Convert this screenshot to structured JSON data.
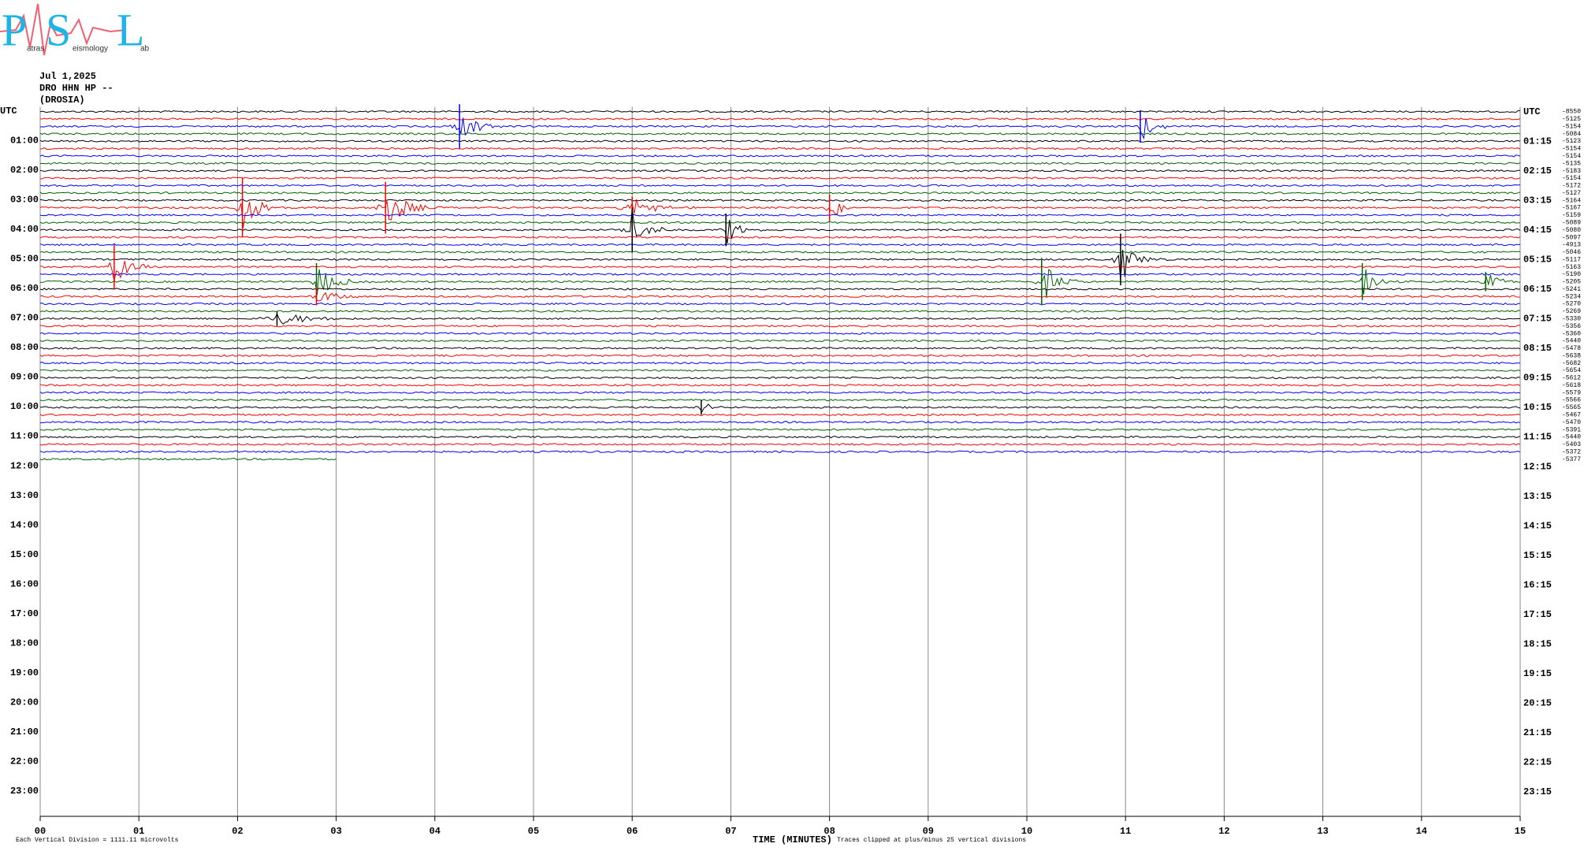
{
  "chart_data": {
    "type": "helicorder",
    "logo": {
      "letters": [
        "P",
        "S",
        "L"
      ],
      "words": [
        "atras",
        "eismology",
        "ab"
      ]
    },
    "header": [
      "Jul 1,2025",
      "DRO HHN HP --",
      "(DROSIA)"
    ],
    "left_labels": [
      "UTC",
      "01:00",
      "02:00",
      "03:00",
      "04:00",
      "05:00",
      "06:00",
      "07:00",
      "08:00",
      "09:00",
      "10:00",
      "11:00",
      "12:00",
      "13:00",
      "14:00",
      "15:00",
      "16:00",
      "17:00",
      "18:00",
      "19:00",
      "20:00",
      "21:00",
      "22:00",
      "23:00"
    ],
    "right_labels": [
      "UTC",
      "01:15",
      "02:15",
      "03:15",
      "04:15",
      "05:15",
      "06:15",
      "07:15",
      "08:15",
      "09:15",
      "10:15",
      "11:15",
      "12:15",
      "13:15",
      "14:15",
      "15:15",
      "16:15",
      "17:15",
      "18:15",
      "19:15",
      "20:15",
      "21:15",
      "22:15",
      "23:15"
    ],
    "trace_colors": [
      "#000000",
      "#ff0000",
      "#0000ff",
      "#006400"
    ],
    "trace_offsets": [
      -8550,
      -5125,
      -5154,
      -5084,
      -5123,
      -5154,
      -5154,
      -5135,
      -5183,
      -5154,
      -5172,
      -5127,
      -5164,
      -5167,
      -5159,
      -5089,
      -5080,
      -5097,
      -4913,
      -5046,
      -5117,
      -5163,
      -5190,
      -5205,
      -5241,
      -5234,
      -5270,
      -5269,
      -5330,
      -5356,
      -5360,
      -5440,
      -5478,
      -5638,
      -5682,
      -5654,
      -5612,
      -5618,
      -5579,
      -5566,
      -5565,
      -5467,
      -5470,
      -5391,
      -5440,
      -5403,
      -5372,
      -5377
    ],
    "last_trace_end_minute": 3,
    "xlim": [
      0,
      15
    ],
    "xticks": [
      {
        "value": 0,
        "label": "00"
      },
      {
        "value": 1,
        "label": "01"
      },
      {
        "value": 2,
        "label": "02"
      },
      {
        "value": 3,
        "label": "03"
      },
      {
        "value": 4,
        "label": "04"
      },
      {
        "value": 5,
        "label": "05"
      },
      {
        "value": 6,
        "label": "06"
      },
      {
        "value": 7,
        "label": "07"
      },
      {
        "value": 8,
        "label": "08"
      },
      {
        "value": 9,
        "label": "09"
      },
      {
        "value": 10,
        "label": "10"
      },
      {
        "value": 11,
        "label": "11"
      },
      {
        "value": 12,
        "label": "12"
      },
      {
        "value": 13,
        "label": "13"
      },
      {
        "value": 14,
        "label": "14"
      },
      {
        "value": 15,
        "label": "15"
      }
    ],
    "events": [
      {
        "row": 2,
        "minute": 4.25,
        "amp": 3,
        "length": 0.5
      },
      {
        "row": 2,
        "minute": 11.15,
        "amp": 2.2,
        "length": 0.5
      },
      {
        "row": 13,
        "minute": 2.05,
        "amp": 4,
        "length": 0.5
      },
      {
        "row": 13,
        "minute": 3.5,
        "amp": 3.5,
        "length": 0.6
      },
      {
        "row": 13,
        "minute": 6.0,
        "amp": 1.5,
        "length": 0.8
      },
      {
        "row": 13,
        "minute": 8.0,
        "amp": 1.8,
        "length": 0.5
      },
      {
        "row": 16,
        "minute": 6.0,
        "amp": 3,
        "length": 0.5
      },
      {
        "row": 16,
        "minute": 6.95,
        "amp": 2.2,
        "length": 0.4
      },
      {
        "row": 20,
        "minute": 10.95,
        "amp": 3.5,
        "length": 0.5
      },
      {
        "row": 21,
        "minute": 0.75,
        "amp": 3,
        "length": 0.5
      },
      {
        "row": 23,
        "minute": 2.8,
        "amp": 2.5,
        "length": 0.6
      },
      {
        "row": 23,
        "minute": 10.15,
        "amp": 3.2,
        "length": 0.5
      },
      {
        "row": 23,
        "minute": 13.4,
        "amp": 2.5,
        "length": 0.4
      },
      {
        "row": 23,
        "minute": 14.65,
        "amp": 1.3,
        "length": 0.5
      },
      {
        "row": 25,
        "minute": 2.8,
        "amp": 1.2,
        "length": 0.6
      },
      {
        "row": 28,
        "minute": 2.4,
        "amp": 1,
        "length": 1.2
      },
      {
        "row": 40,
        "minute": 6.7,
        "amp": 1,
        "length": 0.3
      }
    ],
    "footer": {
      "division": "Each Vertical Division = 1111.11 microvolts",
      "xlabel": "TIME (MINUTES)",
      "clip": "Traces clipped at plus/minus 25 vertical divisions"
    }
  }
}
